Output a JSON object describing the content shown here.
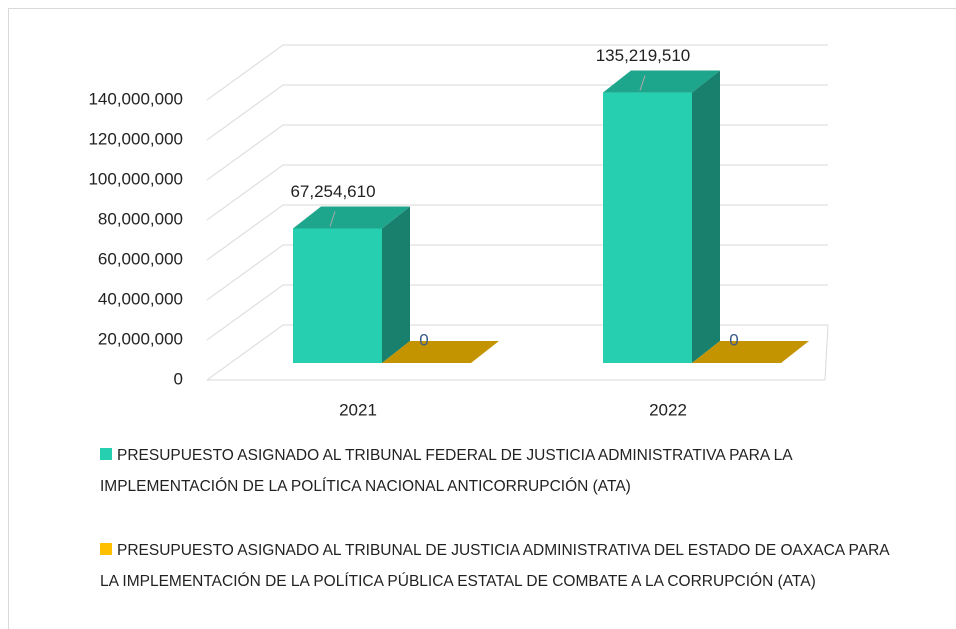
{
  "chart_data": {
    "type": "bar3d",
    "categories": [
      "2021",
      "2022"
    ],
    "series": [
      {
        "name": "PRESUPUESTO ASIGNADO AL TRIBUNAL FEDERAL DE JUSTICIA ADMINISTRATIVA PARA LA IMPLEMENTACIÓN DE LA POLÍTICA NACIONAL ANTICORRUPCIÓN (ATA)",
        "color": "#26cfb0",
        "values": [
          67254610,
          135219510
        ],
        "value_labels": [
          "67,254,610",
          "135,219,510"
        ]
      },
      {
        "name": "PRESUPUESTO ASIGNADO AL TRIBUNAL DE JUSTICIA ADMINISTRATIVA DEL ESTADO DE OAXACA PARA LA IMPLEMENTACIÓN DE LA POLÍTICA PÚBLICA ESTATAL DE COMBATE A LA CORRUPCIÓN (ATA)",
        "color": "#ffc000",
        "values": [
          0,
          0
        ],
        "value_labels": [
          "0",
          "0"
        ]
      }
    ],
    "ylim": [
      0,
      140000000
    ],
    "yticks": [
      0,
      {
        "value": 20000000,
        "label": "20,000,000"
      },
      {
        "value": 40000000,
        "label": "40,000,000"
      },
      {
        "value": 60000000,
        "label": "60,000,000"
      },
      {
        "value": 80000000,
        "label": "80,000,000"
      },
      {
        "value": 100000000,
        "label": "100,000,000"
      },
      {
        "value": 120000000,
        "label": "120,000,000"
      },
      {
        "value": 140000000,
        "label": "140,000,000"
      }
    ],
    "grid": true,
    "legend": "bottom"
  }
}
